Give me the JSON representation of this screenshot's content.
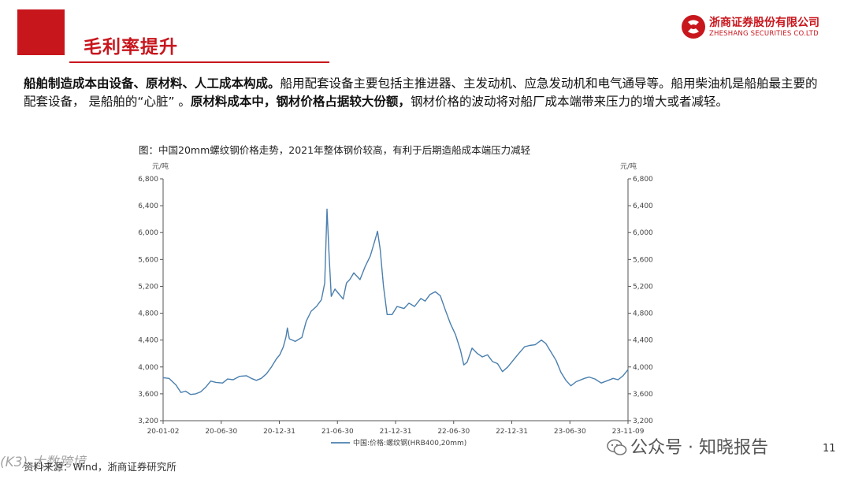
{
  "slide": {
    "title": "毛利率提升",
    "page_number": "11",
    "source": "资料来源：Wind，浙商证券研究所",
    "watermark": "(K3) 大数跨境",
    "wechat_text": "公众号 · 知晓报告"
  },
  "logo": {
    "cn": "浙商证券股份有限公司",
    "en": "ZHESHANG SECURITIES CO.LTD"
  },
  "body": {
    "s1": "船舶制造成本由设备、原材料、人工成本构成。",
    "s2": "船用配套设备主要包括主推进器、主发动机、应急发动机和电气通导等。船用柴油机是船舶最主要的配套设备， 是船舶的“心脏” 。",
    "s3": "原材料成本中，钢材价格占据较大份额，",
    "s4": "钢材价格的波动将对船厂成本端带来压力的增大或者减轻。"
  },
  "colors": {
    "brand_red": "#c8161d",
    "series_line": "#4a7fae"
  },
  "chart_data": {
    "type": "line",
    "title": "图：中国20mm螺纹钢价格走势，2021年整体钢价较高，有利于后期造船成本端压力减轻",
    "ylabel_left": "元/吨",
    "ylabel_right": "元/吨",
    "ylim": [
      3200,
      6800
    ],
    "yticks": [
      "3,200",
      "3,600",
      "4,000",
      "4,400",
      "4,800",
      "5,200",
      "5,600",
      "6,000",
      "6,400",
      "6,800"
    ],
    "xlim": [
      "2020-01-02",
      "2023-11-09"
    ],
    "xticks": [
      "20-01-02",
      "20-06-30",
      "20-12-31",
      "21-06-30",
      "21-12-31",
      "22-06-30",
      "22-12-31",
      "23-06-30",
      "23-11-09"
    ],
    "grid": false,
    "legend_position": "bottom",
    "series": [
      {
        "name": "中国:价格:螺纹钢(HRB400,20mm)",
        "points": [
          [
            "2020-01-02",
            3840
          ],
          [
            "2020-01-20",
            3830
          ],
          [
            "2020-02-10",
            3730
          ],
          [
            "2020-02-25",
            3620
          ],
          [
            "2020-03-10",
            3640
          ],
          [
            "2020-03-25",
            3590
          ],
          [
            "2020-04-10",
            3600
          ],
          [
            "2020-04-25",
            3630
          ],
          [
            "2020-05-10",
            3700
          ],
          [
            "2020-05-25",
            3790
          ],
          [
            "2020-06-10",
            3770
          ],
          [
            "2020-06-30",
            3760
          ],
          [
            "2020-07-15",
            3820
          ],
          [
            "2020-08-01",
            3810
          ],
          [
            "2020-08-20",
            3860
          ],
          [
            "2020-09-10",
            3870
          ],
          [
            "2020-09-25",
            3830
          ],
          [
            "2020-10-10",
            3800
          ],
          [
            "2020-10-25",
            3830
          ],
          [
            "2020-11-10",
            3900
          ],
          [
            "2020-11-25",
            4000
          ],
          [
            "2020-12-10",
            4120
          ],
          [
            "2020-12-20",
            4180
          ],
          [
            "2020-12-31",
            4300
          ],
          [
            "2021-01-08",
            4450
          ],
          [
            "2021-01-12",
            4580
          ],
          [
            "2021-01-18",
            4420
          ],
          [
            "2021-02-05",
            4380
          ],
          [
            "2021-02-25",
            4440
          ],
          [
            "2021-03-10",
            4680
          ],
          [
            "2021-03-25",
            4830
          ],
          [
            "2021-04-10",
            4900
          ],
          [
            "2021-04-25",
            5000
          ],
          [
            "2021-05-05",
            5250
          ],
          [
            "2021-05-12",
            6350
          ],
          [
            "2021-05-18",
            5700
          ],
          [
            "2021-05-25",
            5050
          ],
          [
            "2021-06-05",
            5160
          ],
          [
            "2021-06-15",
            5100
          ],
          [
            "2021-06-30",
            5010
          ],
          [
            "2021-07-10",
            5250
          ],
          [
            "2021-07-20",
            5300
          ],
          [
            "2021-08-01",
            5400
          ],
          [
            "2021-08-20",
            5300
          ],
          [
            "2021-09-05",
            5500
          ],
          [
            "2021-09-20",
            5650
          ],
          [
            "2021-10-05",
            5900
          ],
          [
            "2021-10-12",
            6020
          ],
          [
            "2021-10-20",
            5750
          ],
          [
            "2021-10-30",
            5200
          ],
          [
            "2021-11-10",
            4780
          ],
          [
            "2021-11-25",
            4780
          ],
          [
            "2021-12-10",
            4900
          ],
          [
            "2021-12-31",
            4870
          ],
          [
            "2022-01-15",
            4950
          ],
          [
            "2022-02-01",
            4900
          ],
          [
            "2022-02-20",
            5020
          ],
          [
            "2022-03-05",
            4980
          ],
          [
            "2022-03-20",
            5080
          ],
          [
            "2022-04-05",
            5120
          ],
          [
            "2022-04-20",
            5060
          ],
          [
            "2022-05-05",
            4850
          ],
          [
            "2022-05-20",
            4650
          ],
          [
            "2022-06-05",
            4480
          ],
          [
            "2022-06-20",
            4250
          ],
          [
            "2022-06-30",
            4030
          ],
          [
            "2022-07-10",
            4070
          ],
          [
            "2022-07-25",
            4280
          ],
          [
            "2022-08-10",
            4200
          ],
          [
            "2022-08-25",
            4150
          ],
          [
            "2022-09-10",
            4180
          ],
          [
            "2022-09-25",
            4080
          ],
          [
            "2022-10-10",
            4050
          ],
          [
            "2022-10-25",
            3930
          ],
          [
            "2022-11-10",
            4000
          ],
          [
            "2022-11-25",
            4090
          ],
          [
            "2022-12-10",
            4180
          ],
          [
            "2022-12-31",
            4300
          ],
          [
            "2023-01-15",
            4320
          ],
          [
            "2023-02-01",
            4330
          ],
          [
            "2023-02-20",
            4400
          ],
          [
            "2023-03-05",
            4350
          ],
          [
            "2023-03-20",
            4230
          ],
          [
            "2023-04-05",
            4100
          ],
          [
            "2023-04-20",
            3920
          ],
          [
            "2023-05-05",
            3800
          ],
          [
            "2023-05-20",
            3720
          ],
          [
            "2023-06-05",
            3780
          ],
          [
            "2023-06-30",
            3830
          ],
          [
            "2023-07-15",
            3850
          ],
          [
            "2023-08-01",
            3820
          ],
          [
            "2023-08-20",
            3760
          ],
          [
            "2023-09-10",
            3800
          ],
          [
            "2023-09-25",
            3830
          ],
          [
            "2023-10-10",
            3810
          ],
          [
            "2023-10-25",
            3870
          ],
          [
            "2023-11-09",
            3960
          ]
        ]
      }
    ]
  }
}
